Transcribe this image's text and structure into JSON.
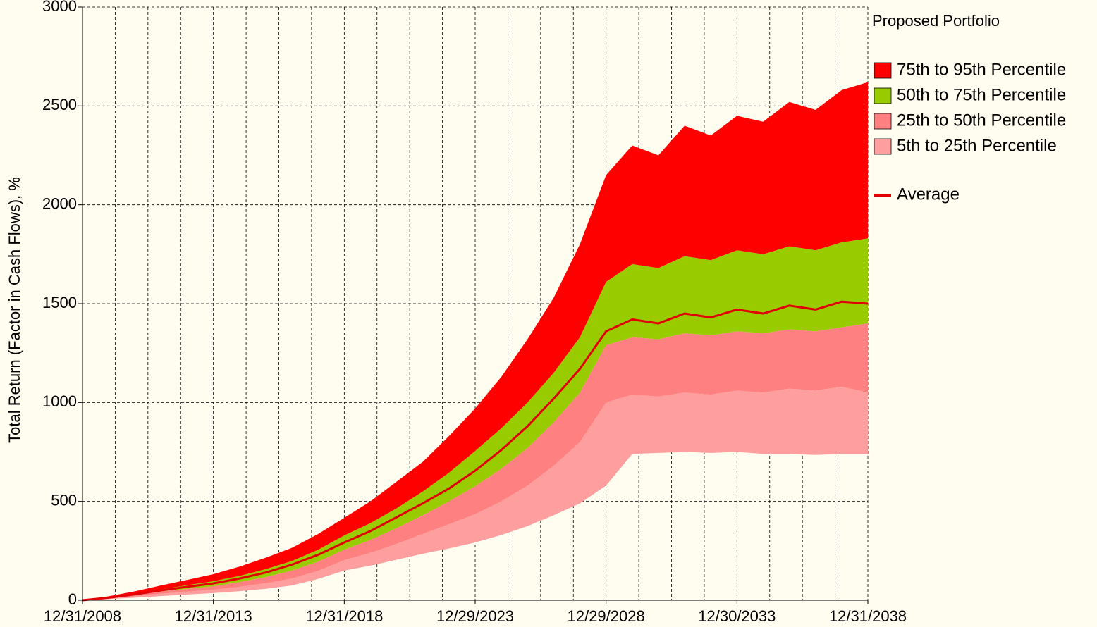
{
  "chart_data": {
    "type": "stacked_area",
    "legend_title": "Proposed Portfolio",
    "ylabel": "Total Return (Factor in Cash Flows), %",
    "x": [
      2009,
      2010,
      2011,
      2012,
      2013,
      2014,
      2015,
      2016,
      2017,
      2018,
      2019,
      2020,
      2021,
      2022,
      2023,
      2024,
      2025,
      2026,
      2027,
      2028,
      2029,
      2030,
      2031,
      2032,
      2033,
      2034,
      2035,
      2036,
      2037,
      2038,
      2039
    ],
    "baseline": [
      0,
      6,
      13,
      21,
      29,
      36,
      46,
      58,
      75,
      108,
      150,
      175,
      205,
      235,
      262,
      292,
      330,
      375,
      430,
      490,
      580,
      740,
      745,
      750,
      745,
      750,
      740,
      740,
      735,
      740,
      740
    ],
    "series": [
      {
        "name": "5th to 25th Percentile",
        "color": "#ff9e9e",
        "values": [
          0,
          3,
          7,
          12,
          14,
          17,
          22,
          28,
          35,
          40,
          53,
          65,
          80,
          100,
          123,
          143,
          170,
          205,
          250,
          310,
          420,
          300,
          285,
          300,
          295,
          310,
          310,
          330,
          325,
          340,
          310
        ]
      },
      {
        "name": "25th to 50th Percentile",
        "color": "#ff8080",
        "values": [
          0,
          3,
          7,
          12,
          15,
          18,
          24,
          31,
          40,
          47,
          53,
          65,
          80,
          95,
          115,
          142,
          165,
          190,
          220,
          250,
          290,
          290,
          290,
          300,
          300,
          300,
          300,
          300,
          300,
          300,
          350
        ]
      },
      {
        "name": "50th to 75th Percentile",
        "color": "#99cc00",
        "values": [
          0,
          3,
          6,
          10,
          18,
          25,
          31,
          40,
          48,
          60,
          72,
          85,
          100,
          120,
          145,
          178,
          205,
          230,
          250,
          280,
          320,
          370,
          360,
          390,
          380,
          410,
          400,
          420,
          410,
          430,
          430
        ]
      },
      {
        "name": "75th to 95th Percentile",
        "color": "#ff0000",
        "values": [
          0,
          5,
          12,
          20,
          27,
          36,
          47,
          58,
          67,
          80,
          89,
          110,
          135,
          150,
          185,
          215,
          260,
          320,
          380,
          470,
          540,
          600,
          570,
          660,
          630,
          680,
          670,
          730,
          710,
          770,
          790
        ]
      }
    ],
    "average": {
      "name": "Average",
      "color": "#e00000",
      "values": [
        0,
        13,
        30,
        50,
        68,
        85,
        110,
        140,
        180,
        230,
        292,
        350,
        420,
        490,
        565,
        655,
        760,
        880,
        1020,
        1170,
        1360,
        1420,
        1400,
        1450,
        1430,
        1470,
        1450,
        1490,
        1470,
        1510,
        1500
      ]
    },
    "xlim": [
      2009,
      2039
    ],
    "xticks": [
      {
        "value": 2009,
        "label": "12/31/2008"
      },
      {
        "value": 2014,
        "label": "12/31/2013"
      },
      {
        "value": 2019,
        "label": "12/31/2018"
      },
      {
        "value": 2024,
        "label": "12/29/2023"
      },
      {
        "value": 2029,
        "label": "12/29/2028"
      },
      {
        "value": 2034,
        "label": "12/30/2033"
      },
      {
        "value": 2039,
        "label": "12/31/2038"
      }
    ],
    "x_grid_subdivisions": 4,
    "ylim": [
      0,
      3000
    ],
    "yticks": [
      0,
      500,
      1000,
      1500,
      2000,
      2500,
      3000
    ],
    "grid": true
  }
}
